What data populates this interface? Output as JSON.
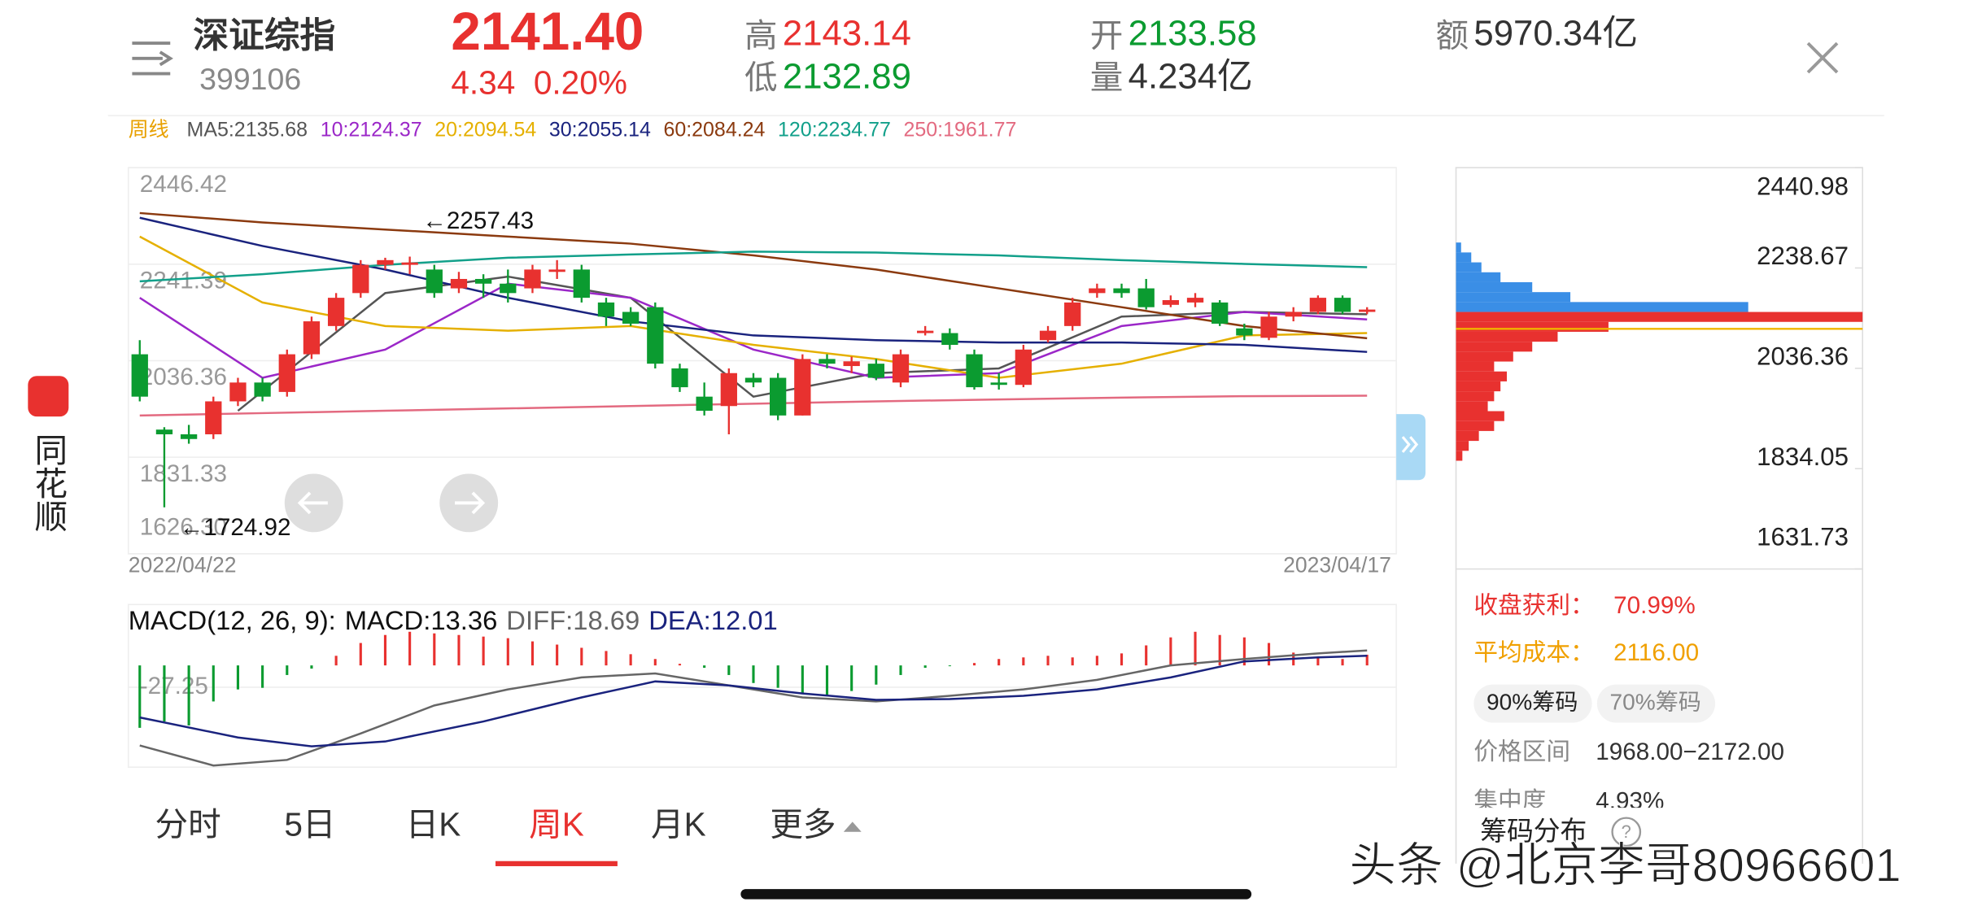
{
  "header": {
    "name": "深证综指",
    "code": "399106",
    "price": "2141.40",
    "change": "4.34",
    "change_pct": "0.20%",
    "high_label": "高",
    "high": "2143.14",
    "low_label": "低",
    "low": "2132.89",
    "open_label": "开",
    "open": "2133.58",
    "volume_label": "量",
    "volume": "4.234亿",
    "amount_label": "额",
    "amount": "5970.34亿"
  },
  "period": "周线",
  "app_name": "同花顺",
  "chart_data": [
    {
      "type": "candlestick",
      "categories": [
        "2022/04/22",
        null,
        null,
        null,
        null,
        null,
        null,
        null,
        null,
        null,
        null,
        null,
        null,
        null,
        null,
        null,
        null,
        null,
        null,
        null,
        null,
        null,
        null,
        null,
        null,
        null,
        null,
        null,
        null,
        null,
        null,
        null,
        null,
        null,
        null,
        null,
        null,
        null,
        null,
        null,
        null,
        null,
        null,
        null,
        null,
        null,
        null,
        null,
        null,
        null,
        "2023/04/17"
      ],
      "open": [
        2050,
        1890,
        1880,
        1880,
        1950,
        1990,
        1970,
        2050,
        2110,
        2180,
        2240,
        2240,
        2230,
        2190,
        2210,
        2200,
        2190,
        2225,
        2230,
        2160,
        2140,
        2150,
        2020,
        1960,
        1940,
        2000,
        2000,
        1920,
        2040,
        2025,
        2030,
        1990,
        2095,
        2095,
        2050,
        1990,
        1985,
        2080,
        2110,
        2180,
        2190,
        2190,
        2155,
        2160,
        2160,
        2105,
        2085,
        2130,
        2140,
        2170,
        2140
      ],
      "close": [
        1960,
        1880,
        1870,
        1950,
        1990,
        1960,
        2050,
        2120,
        2170,
        2240,
        2250,
        2245,
        2180,
        2210,
        2200,
        2180,
        2230,
        2230,
        2170,
        2130,
        2115,
        2030,
        1980,
        1930,
        2010,
        1990,
        1920,
        2040,
        2030,
        2035,
        2000,
        2050,
        2100,
        2070,
        1980,
        1985,
        2060,
        2100,
        2160,
        2190,
        2180,
        2150,
        2165,
        2170,
        2115,
        2090,
        2130,
        2140,
        2170,
        2140,
        2145
      ],
      "high": [
        2080,
        1895,
        1900,
        1960,
        2000,
        2000,
        2060,
        2130,
        2180,
        2250,
        2255,
        2257.43,
        2240,
        2225,
        2220,
        2230,
        2240,
        2250,
        2240,
        2170,
        2150,
        2160,
        2030,
        1990,
        2020,
        2010,
        2010,
        2050,
        2050,
        2045,
        2040,
        2060,
        2110,
        2105,
        2060,
        2010,
        2070,
        2110,
        2170,
        2200,
        2200,
        2210,
        2175,
        2180,
        2165,
        2115,
        2140,
        2150,
        2175,
        2175,
        2150
      ],
      "low": [
        1950,
        1724.92,
        1860,
        1870,
        1940,
        1950,
        1960,
        2040,
        2100,
        2170,
        2230,
        2220,
        2170,
        2180,
        2170,
        2160,
        2180,
        2210,
        2160,
        2110,
        2110,
        2020,
        1970,
        1920,
        1880,
        1980,
        1910,
        1920,
        2020,
        2010,
        1995,
        1980,
        2090,
        2060,
        1975,
        1975,
        1980,
        2075,
        2100,
        2170,
        2170,
        2145,
        2150,
        2150,
        2110,
        2080,
        2080,
        2120,
        2135,
        2135,
        2135
      ],
      "up_color": "#e8312f",
      "down_color": "#0b9b30",
      "ylim": [
        1626.3,
        2446.42
      ],
      "yticks": [
        2446.42,
        2241.39,
        2036.36,
        1831.33,
        {
          "value": 1626.3,
          "label": "1626.30"
        }
      ],
      "grid": true,
      "annotations": [
        "←2257.43",
        "←1724.92"
      ],
      "series": [
        {
          "name": "MA5:2135.68",
          "color": "#555555",
          "x": [
            4,
            10,
            15,
            20,
            25,
            30,
            35,
            40,
            45,
            50
          ],
          "values": [
            1930,
            2180,
            2215,
            2170,
            1960,
            2010,
            2020,
            2130,
            2140,
            2135
          ]
        },
        {
          "name": "10:2124.37",
          "color": "#9b27c8",
          "x": [
            0,
            5,
            10,
            15,
            20,
            25,
            30,
            35,
            40,
            45,
            50
          ],
          "values": [
            2170,
            2000,
            2060,
            2200,
            2170,
            2060,
            2000,
            2010,
            2110,
            2140,
            2124
          ]
        },
        {
          "name": "20:2094.54",
          "color": "#e5b000",
          "x": [
            0,
            5,
            10,
            15,
            20,
            25,
            30,
            35,
            40,
            45,
            50
          ],
          "values": [
            2300,
            2160,
            2110,
            2100,
            2110,
            2070,
            2040,
            2000,
            2030,
            2090,
            2095
          ]
        },
        {
          "name": "30:2055.14",
          "color": "#1a237e",
          "x": [
            0,
            5,
            10,
            15,
            20,
            25,
            30,
            35,
            40,
            45,
            50
          ],
          "values": [
            2340,
            2280,
            2230,
            2170,
            2120,
            2090,
            2080,
            2075,
            2075,
            2070,
            2055
          ]
        },
        {
          "name": "60:2084.24",
          "color": "#8b3a0f",
          "x": [
            0,
            5,
            10,
            15,
            20,
            25,
            30,
            35,
            40,
            45,
            50
          ],
          "values": [
            2350,
            2330,
            2315,
            2300,
            2285,
            2260,
            2230,
            2190,
            2150,
            2110,
            2084
          ]
        },
        {
          "name": "120:2234.77",
          "color": "#12a08a",
          "x": [
            0,
            5,
            10,
            15,
            20,
            25,
            30,
            35,
            40,
            45,
            50
          ],
          "values": [
            2205,
            2220,
            2240,
            2255,
            2262,
            2268,
            2266,
            2260,
            2250,
            2242,
            2235
          ]
        },
        {
          "name": "250:1961.77",
          "color": "#e36a80",
          "x": [
            0,
            5,
            10,
            15,
            20,
            25,
            30,
            35,
            40,
            45,
            50
          ],
          "values": [
            1920,
            1925,
            1930,
            1935,
            1940,
            1945,
            1950,
            1954,
            1958,
            1961,
            1962
          ]
        }
      ]
    },
    {
      "type": "macd",
      "title": "MACD(12, 26, 9):",
      "histogram_label": "MACD:13.36",
      "values": [
        -78,
        -70,
        -75,
        -45,
        -30,
        -28,
        -12,
        -4,
        12,
        28,
        38,
        42,
        40,
        38,
        36,
        34,
        30,
        26,
        22,
        18,
        14,
        8,
        2,
        -3,
        -12,
        -22,
        -28,
        -34,
        -38,
        -32,
        -24,
        -12,
        -3,
        -1,
        3,
        8,
        10,
        12,
        10,
        12,
        15,
        25,
        35,
        42,
        38,
        35,
        28,
        16,
        10,
        8,
        13.36
      ],
      "up_color": "#e8312f",
      "down_color": "#0b9b30",
      "ylim": [
        -127,
        76
      ],
      "yticks": [
        -27.25
      ],
      "series": [
        {
          "name": "DIFF:18.69",
          "color": "#666666",
          "x": [
            0,
            3,
            6,
            9,
            12,
            15,
            18,
            21,
            24,
            27,
            30,
            33,
            36,
            39,
            42,
            45,
            48,
            50
          ],
          "values": [
            -100,
            -125,
            -118,
            -85,
            -50,
            -30,
            -15,
            -10,
            -25,
            -40,
            -45,
            -38,
            -30,
            -18,
            0,
            8,
            15,
            18.69
          ]
        },
        {
          "name": "DEA:12.01",
          "color": "#1a237e",
          "x": [
            0,
            4,
            7,
            10,
            14,
            18,
            21,
            24,
            27,
            30,
            33,
            36,
            39,
            42,
            45,
            48,
            50
          ],
          "values": [
            -65,
            -90,
            -101,
            -95,
            -70,
            -40,
            -20,
            -25,
            -35,
            -43,
            -42,
            -38,
            -30,
            -15,
            5,
            10,
            12.01
          ]
        }
      ]
    },
    {
      "type": "chip_distribution",
      "levels": [
        2280,
        2260,
        2240,
        2220,
        2200,
        2180,
        2160,
        2140,
        2120,
        2100,
        2080,
        2060,
        2040,
        2020,
        2000,
        1980,
        1960,
        1940,
        1920,
        1900,
        1880,
        1860
      ],
      "values": [
        4,
        12,
        20,
        35,
        60,
        90,
        230,
        320,
        120,
        80,
        60,
        45,
        30,
        40,
        35,
        30,
        25,
        38,
        30,
        18,
        10,
        5
      ],
      "xlim": [
        0,
        320
      ],
      "color_above": "#3a8ee6",
      "color_below": "#e8312f",
      "ylim": [
        1631.73,
        2440.98
      ],
      "yticks": [
        2440.98,
        2238.67,
        2036.36,
        1834.05,
        1631.73
      ]
    }
  ],
  "chips": {
    "profit_label": "收盘获利：",
    "profit": "70.99%",
    "avg_cost_label": "平均成本：",
    "avg_cost": "2116.00",
    "buttons": [
      "90%筹码",
      "70%筹码"
    ],
    "range_label": "价格区间",
    "range": "1968.00−2172.00",
    "concentration_label": "集中度",
    "concentration": "4.93%",
    "footer": "筹码分布"
  },
  "tabs": [
    "分时",
    "5日",
    "日K",
    "周K",
    "月K",
    "更多"
  ],
  "active_tab": 3,
  "watermark": "头条 @北京李哥80966601"
}
